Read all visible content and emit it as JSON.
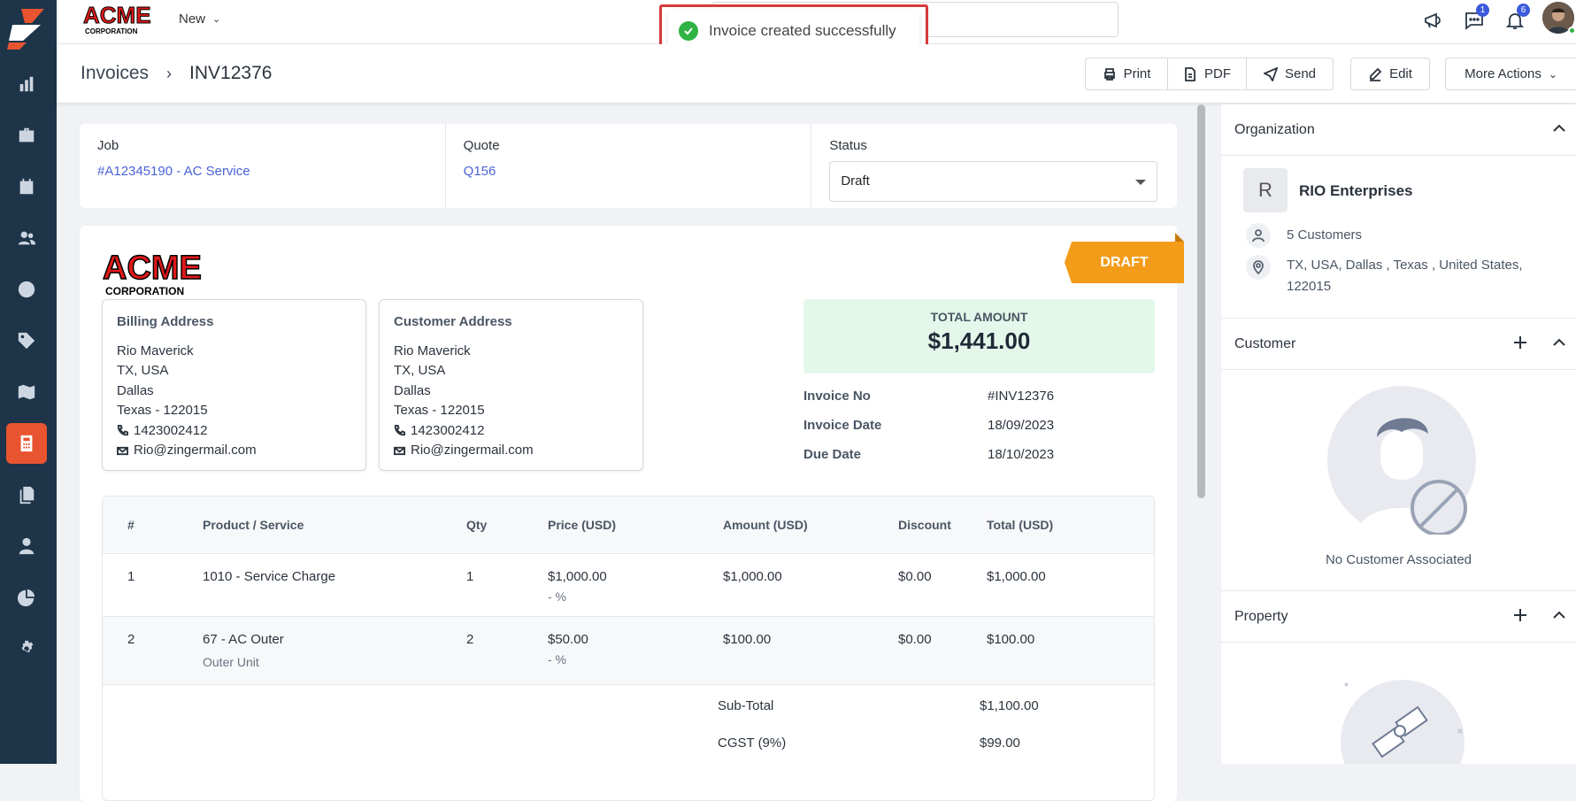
{
  "app": {
    "brand": "ACME",
    "brand_sub": "CORPORATION",
    "new_label": "New"
  },
  "toast": {
    "message": "Invoice created successfully"
  },
  "notifications": {
    "chat_count": "1",
    "bell_count": "6"
  },
  "breadcrumb": {
    "root": "Invoices",
    "current": "INV12376"
  },
  "actions": {
    "print": "Print",
    "pdf": "PDF",
    "send": "Send",
    "edit": "Edit",
    "more": "More Actions"
  },
  "info": {
    "job_label": "Job",
    "job_value": "#A12345190 - AC Service",
    "quote_label": "Quote",
    "quote_value": "Q156",
    "status_label": "Status",
    "status_value": "Draft"
  },
  "invoice": {
    "tag": "DRAFT",
    "billing": {
      "title": "Billing Address",
      "name": "Rio Maverick",
      "line1": "TX, USA",
      "city": "Dallas",
      "state_zip": "Texas - 122015",
      "phone": "1423002412",
      "email": "Rio@zingermail.com"
    },
    "customer": {
      "title": "Customer Address",
      "name": "Rio Maverick",
      "line1": "TX, USA",
      "city": "Dallas",
      "state_zip": "Texas - 122015",
      "phone": "1423002412",
      "email": "Rio@zingermail.com"
    },
    "total_label": "TOTAL AMOUNT",
    "total_value": "$1,441.00",
    "invoice_no_label": "Invoice No",
    "invoice_no": "#INV12376",
    "invoice_date_label": "Invoice Date",
    "invoice_date": "18/09/2023",
    "due_date_label": "Due Date",
    "due_date": "18/10/2023"
  },
  "table": {
    "headers": [
      "#",
      "Product / Service",
      "Qty",
      "Price (USD)",
      "Amount (USD)",
      "Discount",
      "Total (USD)"
    ],
    "rows": [
      {
        "num": "1",
        "product": "1010 - Service Charge",
        "desc": "",
        "qty": "1",
        "price": "$1,000.00",
        "pct": "- %",
        "amount": "$1,000.00",
        "discount": "$0.00",
        "total": "$1,000.00"
      },
      {
        "num": "2",
        "product": "67 - AC Outer",
        "desc": "Outer Unit",
        "qty": "2",
        "price": "$50.00",
        "pct": "- %",
        "amount": "$100.00",
        "discount": "$0.00",
        "total": "$100.00"
      }
    ],
    "subtotal_label": "Sub-Total",
    "subtotal": "$1,100.00",
    "cgst_label": "CGST (9%)",
    "cgst": "$99.00"
  },
  "panel": {
    "org_title": "Organization",
    "org_initial": "R",
    "org_name": "RIO Enterprises",
    "org_customers": "5 Customers",
    "org_address": "TX, USA, Dallas , Texas , United States, 122015",
    "customer_title": "Customer",
    "no_customer": "No Customer Associated",
    "property_title": "Property"
  },
  "colors": {
    "sidebar": "#1d3449",
    "active": "#e8542f",
    "draft": "#f39c1a",
    "link": "#4a63d7",
    "total_bg": "#e3f8ea"
  }
}
